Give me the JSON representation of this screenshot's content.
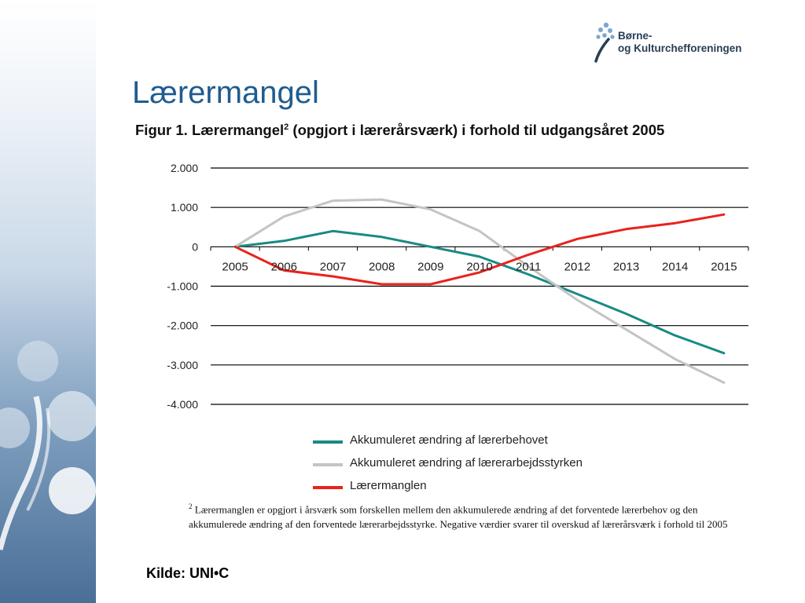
{
  "slide": {
    "title": "Lærermangel",
    "source": "Kilde: UNI•C"
  },
  "logo": {
    "line1": "Børne-",
    "line2": "og Kulturchefforeningen",
    "color": "#2a3d55",
    "dot_color": "#7aa7cf"
  },
  "figure": {
    "title_pre": "Figur 1. Lærermangel",
    "title_sup": "2",
    "title_post": " (opgjort i lærerårsværk) i forhold til udgangsåret 2005"
  },
  "footnote": {
    "marker": "2",
    "text": " Lærermanglen er opgjort i årsværk som forskellen mellem den akkumulerede ændring af det forventede lærerbehov og den akkumulerede ændring af den forventede lærerarbejdsstyrke. Negative værdier svarer til overskud af lærerårsværk i forhold til 2005"
  },
  "chart_data": {
    "type": "line",
    "x": [
      "2005",
      "2006",
      "2007",
      "2008",
      "2009",
      "2010",
      "2011",
      "2012",
      "2013",
      "2014",
      "2015"
    ],
    "ylim": [
      -4000,
      2000
    ],
    "yticks": [
      2000,
      1000,
      0,
      -1000,
      -2000,
      -3000,
      -4000
    ],
    "ytick_labels": [
      "2.000",
      "1.000",
      "0",
      "-1.000",
      "-2.000",
      "-3.000",
      "-4.000"
    ],
    "grid": true,
    "legend_position": "bottom",
    "series": [
      {
        "name": "Akkumuleret ændring af lærerbehovet",
        "color": "#1a8a84",
        "values": [
          0,
          150,
          400,
          250,
          0,
          -250,
          -700,
          -1200,
          -1700,
          -2250,
          -2700
        ]
      },
      {
        "name": "Akkumuleret ændring af lærerarbejdsstyrken",
        "color": "#c4c4c4",
        "values": [
          0,
          770,
          1170,
          1200,
          950,
          400,
          -500,
          -1350,
          -2100,
          -2850,
          -3450
        ]
      },
      {
        "name": "Lærermanglen",
        "color": "#e8231c",
        "values": [
          0,
          -600,
          -750,
          -950,
          -950,
          -650,
          -200,
          200,
          450,
          600,
          820
        ]
      }
    ]
  }
}
